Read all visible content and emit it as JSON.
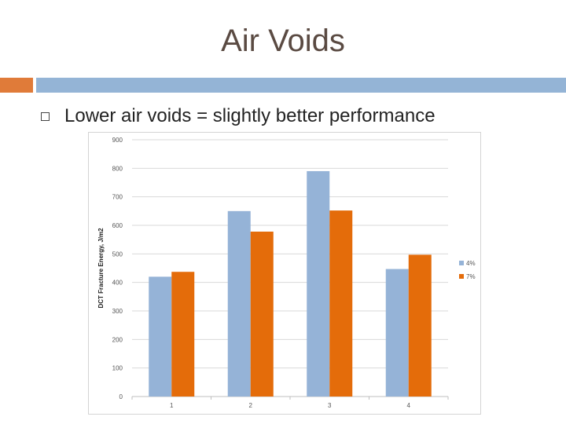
{
  "slide": {
    "title": "Air Voids",
    "bullet": "Lower air voids = slightly better performance"
  },
  "colors": {
    "accent_orange": "#e07b39",
    "accent_blue": "#94b4d6",
    "series_4": "#95b3d7",
    "series_7": "#e46c0a"
  },
  "chart_data": {
    "type": "bar",
    "title": "",
    "xlabel": "",
    "ylabel": "DCT Fracture Energy, J/m2",
    "categories": [
      "1",
      "2",
      "3",
      "4"
    ],
    "series": [
      {
        "name": "4%",
        "values": [
          420,
          650,
          790,
          447
        ]
      },
      {
        "name": "7%",
        "values": [
          437,
          578,
          652,
          497
        ]
      }
    ],
    "ylim": [
      0,
      900
    ],
    "yticks": [
      0,
      100,
      200,
      300,
      400,
      500,
      600,
      700,
      800,
      900
    ],
    "grid": true,
    "legend": "right"
  }
}
